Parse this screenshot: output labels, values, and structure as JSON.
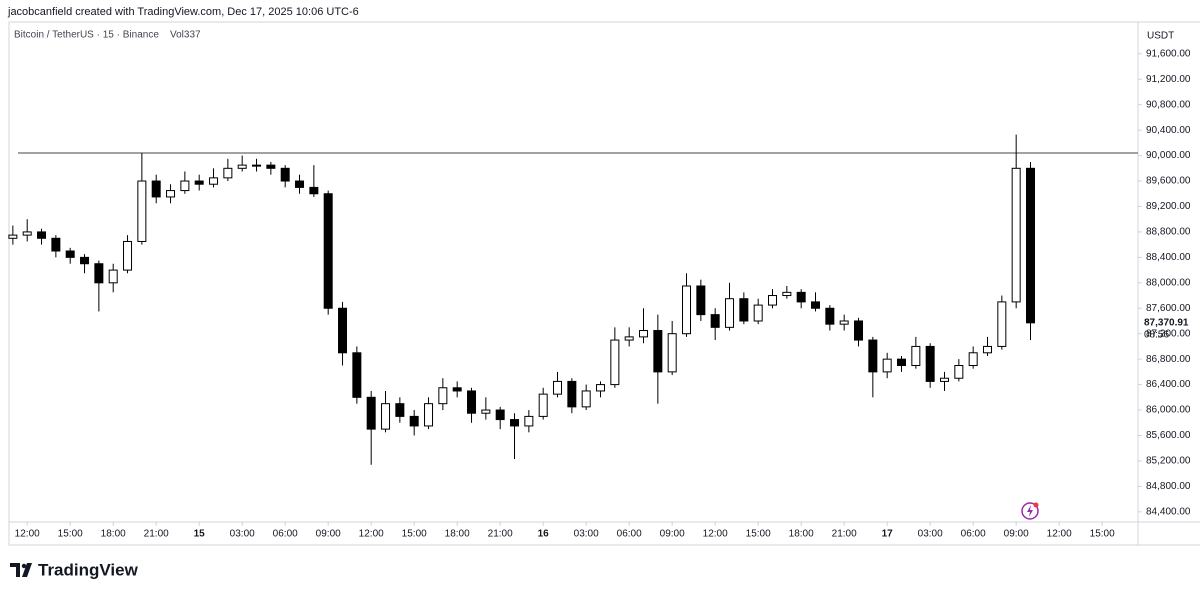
{
  "header": {
    "attribution": "jacobcanfield created with TradingView.com, Dec 17, 2025 10:06 UTC-6"
  },
  "footer": {
    "brand": "TradingView"
  },
  "chart_data": {
    "type": "candlestick",
    "title": "Bitcoin / TetherUS · 15 · Binance",
    "subtitle": "Vol337",
    "y_unit": "USDT",
    "x": [
      -1,
      0,
      1,
      2,
      3,
      4,
      5,
      6,
      7,
      8,
      9,
      10,
      11,
      12,
      13,
      14,
      15,
      16,
      17,
      18,
      19,
      20,
      21,
      22,
      23,
      24,
      25,
      26,
      27,
      28,
      29,
      30,
      31,
      32,
      33,
      34,
      35,
      36,
      37,
      38,
      39,
      40,
      41,
      42,
      43,
      44,
      45,
      46,
      47,
      48,
      49,
      50,
      51,
      52,
      53,
      54,
      55,
      56,
      57,
      58,
      59,
      60,
      61,
      62,
      63,
      64,
      65,
      66,
      67,
      68,
      69,
      70
    ],
    "open": [
      88700,
      88750,
      88800,
      88700,
      88500,
      88400,
      88300,
      88000,
      88200,
      88650,
      89600,
      89350,
      89450,
      89600,
      89550,
      89650,
      89800,
      89850,
      89850,
      89800,
      89600,
      89500,
      89400,
      87600,
      86900,
      86200,
      85700,
      86100,
      85900,
      85750,
      86100,
      86350,
      86300,
      85950,
      86000,
      85850,
      85750,
      85900,
      86250,
      86450,
      86050,
      86300,
      86400,
      87100,
      87150,
      87250,
      86600,
      87200,
      87950,
      87500,
      87300,
      87750,
      87400,
      87650,
      87800,
      87850,
      87700,
      87600,
      87350,
      87400,
      87100,
      86600,
      86800,
      86700,
      87000,
      86450,
      86500,
      86700,
      86900,
      87000,
      87700,
      89800
    ],
    "high": [
      88900,
      89000,
      88850,
      88750,
      88550,
      88450,
      88350,
      88300,
      88750,
      90040,
      89700,
      89550,
      89750,
      89700,
      89800,
      89950,
      90000,
      89950,
      89900,
      89850,
      89700,
      89850,
      89450,
      87700,
      87000,
      86300,
      86300,
      86200,
      86000,
      86200,
      86500,
      86450,
      86350,
      86200,
      86050,
      85950,
      86000,
      86350,
      86600,
      86500,
      86400,
      86450,
      87300,
      87300,
      87600,
      87500,
      87400,
      88150,
      88050,
      87600,
      88000,
      87850,
      87750,
      87900,
      87950,
      87900,
      87850,
      87650,
      87500,
      87450,
      87150,
      86900,
      86850,
      87150,
      87050,
      86600,
      86800,
      87000,
      87150,
      87800,
      90330,
      89900
    ],
    "low": [
      88600,
      88650,
      88600,
      88400,
      88300,
      88150,
      87550,
      87850,
      88150,
      88600,
      89250,
      89250,
      89400,
      89450,
      89500,
      89600,
      89750,
      89750,
      89700,
      89500,
      89400,
      89350,
      87500,
      86700,
      86100,
      85140,
      85650,
      85800,
      85600,
      85700,
      86000,
      86200,
      85800,
      85850,
      85700,
      85230,
      85650,
      85850,
      86200,
      85950,
      86000,
      86200,
      86350,
      87000,
      87050,
      86100,
      86550,
      87150,
      87400,
      87100,
      87250,
      87350,
      87350,
      87600,
      87750,
      87600,
      87550,
      87250,
      87250,
      87000,
      86200,
      86500,
      86600,
      86650,
      86350,
      86300,
      86450,
      86650,
      86850,
      86950,
      87600,
      87100
    ],
    "close": [
      88750,
      88800,
      88700,
      88500,
      88400,
      88300,
      88000,
      88200,
      88650,
      89600,
      89350,
      89450,
      89600,
      89550,
      89650,
      89800,
      89850,
      89850,
      89800,
      89600,
      89500,
      89400,
      87600,
      86900,
      86200,
      85700,
      86100,
      85900,
      85750,
      86100,
      86350,
      86300,
      85950,
      86000,
      85850,
      85750,
      85900,
      86250,
      86450,
      86050,
      86300,
      86400,
      87100,
      87150,
      87250,
      86600,
      87200,
      87950,
      87500,
      87300,
      87750,
      87400,
      87650,
      87800,
      87850,
      87700,
      87600,
      87350,
      87400,
      87100,
      86600,
      86800,
      86700,
      87000,
      86450,
      86500,
      86700,
      86900,
      87000,
      87700,
      89800,
      87370.91
    ],
    "up_color": "#ffffff",
    "down_color": "#000000",
    "border_color": "#000000",
    "hline": 90040,
    "last_price": {
      "value": 87370.91,
      "label": "87,370.91"
    },
    "countdown": "08:56",
    "xlim": [
      -1.2,
      77.5
    ],
    "xticks": [
      {
        "value": 0,
        "label": "12:00"
      },
      {
        "value": 3,
        "label": "15:00"
      },
      {
        "value": 6,
        "label": "18:00"
      },
      {
        "value": 9,
        "label": "21:00"
      },
      {
        "value": 12,
        "label": "15"
      },
      {
        "value": 15,
        "label": "03:00"
      },
      {
        "value": 18,
        "label": "06:00"
      },
      {
        "value": 21,
        "label": "09:00"
      },
      {
        "value": 24,
        "label": "12:00"
      },
      {
        "value": 27,
        "label": "15:00"
      },
      {
        "value": 30,
        "label": "18:00"
      },
      {
        "value": 33,
        "label": "21:00"
      },
      {
        "value": 36,
        "label": "16"
      },
      {
        "value": 39,
        "label": "03:00"
      },
      {
        "value": 42,
        "label": "06:00"
      },
      {
        "value": 45,
        "label": "09:00"
      },
      {
        "value": 48,
        "label": "12:00"
      },
      {
        "value": 51,
        "label": "15:00"
      },
      {
        "value": 54,
        "label": "18:00"
      },
      {
        "value": 57,
        "label": "21:00"
      },
      {
        "value": 60,
        "label": "17"
      },
      {
        "value": 63,
        "label": "03:00"
      },
      {
        "value": 66,
        "label": "06:00"
      },
      {
        "value": 69,
        "label": "09:00"
      },
      {
        "value": 72,
        "label": "12:00"
      },
      {
        "value": 75,
        "label": "15:00"
      }
    ],
    "ylim": [
      84240,
      92100
    ],
    "yticks": [
      {
        "value": 84400,
        "label": "84,400.00"
      },
      {
        "value": 84800,
        "label": "84,800.00"
      },
      {
        "value": 85200,
        "label": "85,200.00"
      },
      {
        "value": 85600,
        "label": "85,600.00"
      },
      {
        "value": 86000,
        "label": "86,000.00"
      },
      {
        "value": 86400,
        "label": "86,400.00"
      },
      {
        "value": 86800,
        "label": "86,800.00"
      },
      {
        "value": 87200,
        "label": "87,200.00"
      },
      {
        "value": 87600,
        "label": "87,600.00"
      },
      {
        "value": 88000,
        "label": "88,000.00"
      },
      {
        "value": 88400,
        "label": "88,400.00"
      },
      {
        "value": 88800,
        "label": "88,800.00"
      },
      {
        "value": 89200,
        "label": "89,200.00"
      },
      {
        "value": 89600,
        "label": "89,600.00"
      },
      {
        "value": 90000,
        "label": "90,000.00"
      },
      {
        "value": 90400,
        "label": "90,400.00"
      },
      {
        "value": 90800,
        "label": "90,800.00"
      },
      {
        "value": 91200,
        "label": "91,200.00"
      },
      {
        "value": 91600,
        "label": "91,600.00"
      }
    ],
    "grid": false
  }
}
